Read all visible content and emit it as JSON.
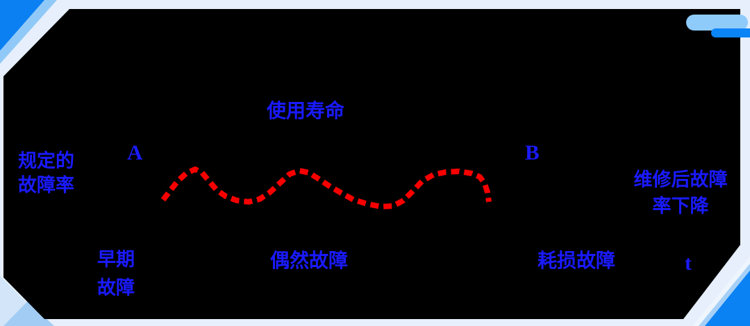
{
  "slide": {
    "background_color": "#e6effb",
    "panel_color": "#000000",
    "accent_bright_blue": "#0a80f2",
    "accent_medium_blue": "#90c9f8",
    "accent_pale_blue": "#d2e5f9",
    "label_color": "#1a1aff"
  },
  "diagram": {
    "title": "使用寿命",
    "y_axis_label": "规定的\n故障率",
    "point_a": "A",
    "point_b": "B",
    "right_note": "维修后故障\n率下降",
    "phase_early": "早期\n故障",
    "phase_random": "偶然故障",
    "phase_wearout": "耗损故障",
    "time_axis": "t",
    "curve": {
      "type": "line",
      "style": "dashed",
      "color": "#f80000",
      "stroke_width": 8,
      "dash": [
        12,
        7
      ],
      "points": [
        [
          235,
          288
        ],
        [
          245,
          275
        ],
        [
          256,
          261
        ],
        [
          268,
          250
        ],
        [
          281,
          244
        ],
        [
          291,
          249
        ],
        [
          301,
          261
        ],
        [
          312,
          274
        ],
        [
          325,
          283
        ],
        [
          341,
          289
        ],
        [
          358,
          291
        ],
        [
          374,
          287
        ],
        [
          389,
          277
        ],
        [
          403,
          264
        ],
        [
          417,
          251
        ],
        [
          431,
          246
        ],
        [
          445,
          249
        ],
        [
          459,
          258
        ],
        [
          474,
          268
        ],
        [
          491,
          278
        ],
        [
          509,
          288
        ],
        [
          529,
          294
        ],
        [
          549,
          298
        ],
        [
          566,
          297
        ],
        [
          581,
          289
        ],
        [
          594,
          276
        ],
        [
          608,
          261
        ],
        [
          624,
          252
        ],
        [
          642,
          248
        ],
        [
          661,
          247
        ],
        [
          679,
          250
        ],
        [
          691,
          255
        ],
        [
          698,
          265
        ],
        [
          702,
          277
        ],
        [
          704,
          291
        ]
      ]
    }
  }
}
